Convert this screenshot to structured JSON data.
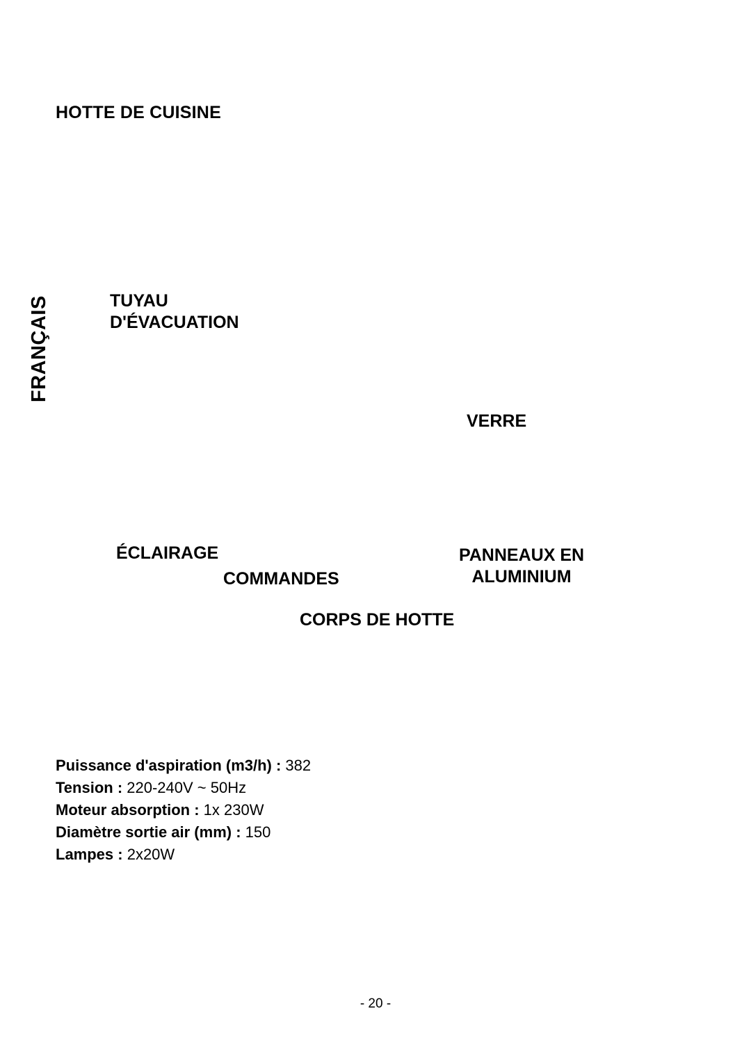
{
  "page": {
    "title": "HOTTE DE CUISINE",
    "language_sidebar": "FRANÇAIS",
    "page_number": "- 20 -"
  },
  "labels": {
    "tuyau_line1": "TUYAU",
    "tuyau_line2": "D'ÉVACUATION",
    "verre": "VERRE",
    "eclairage": "ÉCLAIRAGE",
    "commandes": "COMMANDES",
    "panneaux_line1": "PANNEAUX EN",
    "panneaux_line2": "ALUMINIUM",
    "corps": "CORPS DE HOTTE"
  },
  "specs": {
    "rows": [
      {
        "key": "Puissance d'aspiration (m3/h) : ",
        "value": "382"
      },
      {
        "key": "Tension : ",
        "value": "220-240V ~ 50Hz"
      },
      {
        "key": "Moteur absorption : ",
        "value": "1x 230W"
      },
      {
        "key": "Diamètre sortie air (mm) : ",
        "value": "150"
      },
      {
        "key": "Lampes : ",
        "value": "2x20W"
      }
    ]
  },
  "style": {
    "background_color": "#ffffff",
    "text_color": "#000000",
    "title_fontsize": 25,
    "label_fontsize": 25,
    "sidebar_fontsize": 29,
    "spec_fontsize": 22,
    "page_number_fontsize": 19,
    "font_weight_bold": 700
  }
}
